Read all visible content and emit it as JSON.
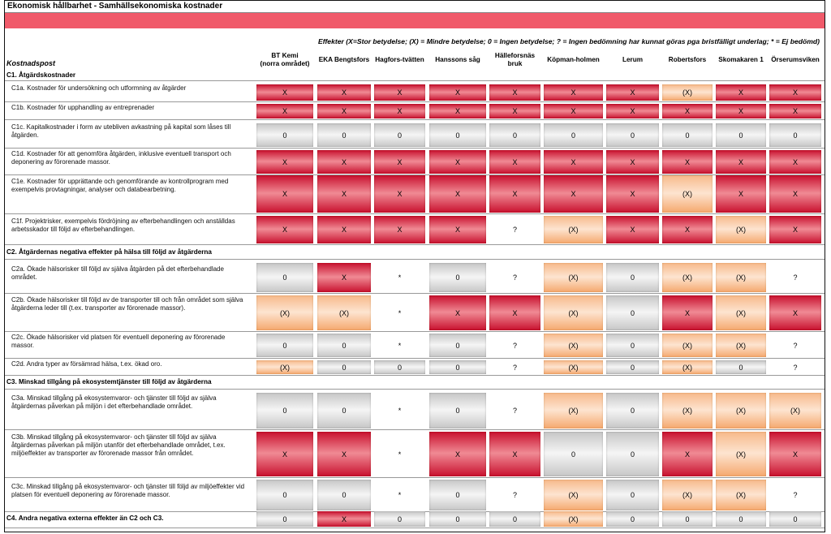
{
  "title": "Ekonomisk hållbarhet - Samhällsekonomiska kostnader",
  "legend": "Effekter (X=Stor betydelse; (X) = Mindre betydelse; 0 = Ingen betydelse; ? = Ingen bedömning har kunnat göras pga bristfälligt underlag; * = Ej bedömd)",
  "kostnadspost_label": "Kostnadspost",
  "columns": [
    {
      "l1": "BT Kemi",
      "l2": "(norra området)"
    },
    {
      "l1": "EKA Bengtsfors",
      "l2": ""
    },
    {
      "l1": "Hagfors-tvätten",
      "l2": ""
    },
    {
      "l1": "Hanssons såg",
      "l2": ""
    },
    {
      "l1": "Hälleforsnäs",
      "l2": "bruk"
    },
    {
      "l1": "Köpman-holmen",
      "l2": ""
    },
    {
      "l1": "Lerum",
      "l2": ""
    },
    {
      "l1": "Robertsfors",
      "l2": ""
    },
    {
      "l1": "Skomakaren 1",
      "l2": ""
    },
    {
      "l1": "Örserumsviken",
      "l2": ""
    }
  ],
  "rows": [
    {
      "kind": "section",
      "label": "C1. Åtgärdskostnader"
    },
    {
      "kind": "data",
      "label": "C1a.  Kostnader för undersökning och utformning av åtgärder",
      "values": [
        "X",
        "X",
        "X",
        "X",
        "X",
        "X",
        "X",
        "(X)",
        "X",
        "X"
      ]
    },
    {
      "kind": "data",
      "label": "C1b.  Kostnader för upphandling av entreprenader",
      "values": [
        "X",
        "X",
        "X",
        "X",
        "X",
        "X",
        "X",
        "X",
        "X",
        "X"
      ]
    },
    {
      "kind": "data",
      "label": "C1c.  Kapitalkostnader i form av utebliven avkastning på kapital som låses till åtgärden.",
      "values": [
        "0",
        "0",
        "0",
        "0",
        "0",
        "0",
        "0",
        "0",
        "0",
        "0"
      ]
    },
    {
      "kind": "data",
      "label": "C1d.  Kostnader för att genomföra åtgärden, inklusive eventuell transport och deponering av förorenade massor.",
      "values": [
        "X",
        "X",
        "X",
        "X",
        "X",
        "X",
        "X",
        "X",
        "X",
        "X"
      ]
    },
    {
      "kind": "data",
      "label": "C1e.  Kostnader för upprättande och genomförande av kontrollprogram med exempelvis provtagningar, analyser och databearbetning.",
      "values": [
        "X",
        "X",
        "X",
        "X",
        "X",
        "X",
        "X",
        "(X)",
        "X",
        "X"
      ]
    },
    {
      "kind": "data",
      "label": "C1f.  Projektrisker, exempelvis fördröjning av efterbehandlingen och anställdas arbetsskador till följd av efterbehandlingen.",
      "values": [
        "X",
        "X",
        "X",
        "X",
        "?",
        "(X)",
        "X",
        "X",
        "(X)",
        "X"
      ]
    },
    {
      "kind": "section",
      "label": "C2. Åtgärdernas negativa effekter på hälsa till följd av åtgärderna"
    },
    {
      "kind": "data",
      "label": "C2a.  Ökade hälsorisker till följd av själva åtgärden på det efterbehandlade området.",
      "values": [
        "0",
        "X",
        "*",
        "0",
        "?",
        "(X)",
        "0",
        "(X)",
        "(X)",
        "?"
      ]
    },
    {
      "kind": "data",
      "label": "C2b.  Ökade hälsorisker till följd av de transporter till och från området som själva åtgärderna leder till (t.ex. transporter av förorenade massor).",
      "values": [
        "(X)",
        "(X)",
        "*",
        "X",
        "X",
        "(X)",
        "0",
        "X",
        "(X)",
        "X"
      ]
    },
    {
      "kind": "data",
      "label": "C2c.  Ökade hälsorisker vid platsen för eventuell deponering av förorenade massor.",
      "values": [
        "0",
        "0",
        "*",
        "0",
        "?",
        "(X)",
        "0",
        "(X)",
        "(X)",
        "?"
      ]
    },
    {
      "kind": "data",
      "label": "C2d.  Andra typer av försämrad hälsa, t.ex. ökad oro.",
      "values": [
        "(X)",
        "0",
        "0",
        "0",
        "?",
        "(X)",
        "0",
        "(X)",
        "0",
        "?"
      ]
    },
    {
      "kind": "section",
      "label": "C3. Minskad tillgång på ekosystemtjänster till följd av åtgärderna"
    },
    {
      "kind": "data",
      "label": "C3a.  Minskad tillgång på ekosystemvaror- och tjänster till följd av själva åtgärdernas påverkan på miljön i det efterbehandlade området.",
      "values": [
        "0",
        "0",
        "*",
        "0",
        "?",
        "(X)",
        "0",
        "(X)",
        "(X)",
        "(X)"
      ]
    },
    {
      "kind": "data",
      "label": "C3b.  Minskad tillgång på ekosystemvaror- och tjänster till följd av själva åtgärdernas påverkan på miljön utanför det efterbehandlade området, t.ex. miljöeffekter av transporter av förorenade massor från området.",
      "values": [
        "X",
        "X",
        "*",
        "X",
        "X",
        "0",
        "0",
        "X",
        "(X)",
        "X"
      ]
    },
    {
      "kind": "data",
      "label": "C3c.  Minskad tillgång på ekosystemvaror- och tjänster till följd av miljöeffekter vid platsen för eventuell deponering av förorenade massor.",
      "values": [
        "0",
        "0",
        "*",
        "0",
        "?",
        "(X)",
        "0",
        "(X)",
        "(X)",
        "?"
      ]
    },
    {
      "kind": "sectiondata",
      "label": "C4. Andra negativa externa effekter än C2 och C3.",
      "values": [
        "0",
        "X",
        "0",
        "0",
        "0",
        "(X)",
        "0",
        "0",
        "0",
        "0"
      ]
    }
  ]
}
